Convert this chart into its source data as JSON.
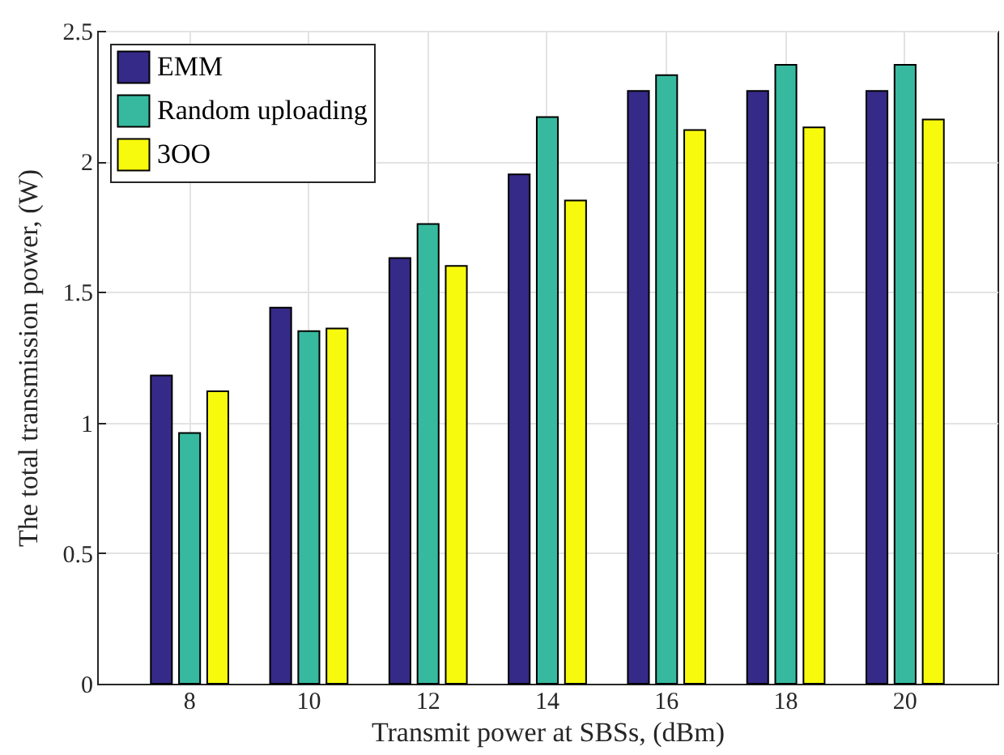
{
  "chart_data": {
    "type": "bar",
    "xlabel": "Transmit power at SBSs, (dBm)",
    "ylabel": "The total transmission power, (W)",
    "categories": [
      "8",
      "10",
      "12",
      "14",
      "16",
      "18",
      "20"
    ],
    "series": [
      {
        "name": "EMM",
        "color": "#352a87",
        "values": [
          1.18,
          1.44,
          1.63,
          1.95,
          2.27,
          2.27,
          2.27
        ]
      },
      {
        "name": "Random uploading",
        "color": "#36b99f",
        "values": [
          0.96,
          1.35,
          1.76,
          2.17,
          2.33,
          2.37,
          2.37
        ]
      },
      {
        "name": "3OO",
        "color": "#f8fa0d",
        "values": [
          1.12,
          1.36,
          1.6,
          1.85,
          2.12,
          2.13,
          2.16
        ]
      }
    ],
    "ylim": [
      0,
      2.5
    ],
    "yticks": [
      0,
      0.5,
      1,
      1.5,
      2,
      2.5
    ],
    "grid": true,
    "legend": "top left"
  }
}
